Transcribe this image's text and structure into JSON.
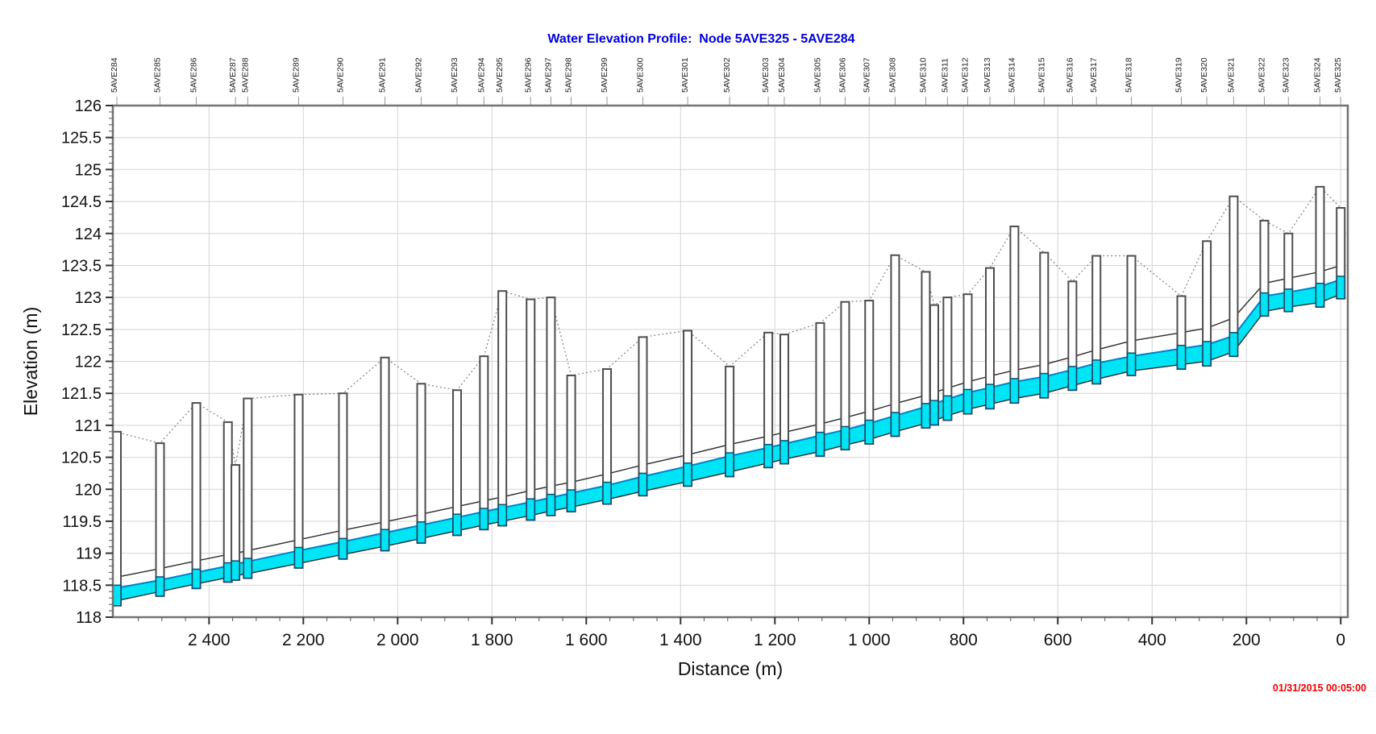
{
  "header": {
    "title": "Water Elevation Profile:  Node 5AVE325 - 5AVE284",
    "title_color": "#0000dd"
  },
  "footer": {
    "timestamp": "01/31/2015 00:05:00",
    "timestamp_color": "#ee0000"
  },
  "chart_data": {
    "type": "area",
    "title": "Water Elevation Profile:  Node 5AVE325 - 5AVE284",
    "xlabel": "Distance (m)",
    "ylabel": "Elevation (m)",
    "xlim": [
      2604,
      -15
    ],
    "ylim": [
      118,
      126
    ],
    "x_axis_reversed": true,
    "grid": true,
    "x_ticks": [
      {
        "v": 2400,
        "label": "2 400"
      },
      {
        "v": 2200,
        "label": "2 200"
      },
      {
        "v": 2000,
        "label": "2 000"
      },
      {
        "v": 1800,
        "label": "1 800"
      },
      {
        "v": 1600,
        "label": "1 600"
      },
      {
        "v": 1400,
        "label": "1 400"
      },
      {
        "v": 1200,
        "label": "1 200"
      },
      {
        "v": 1000,
        "label": "1 000"
      },
      {
        "v": 800,
        "label": "800"
      },
      {
        "v": 600,
        "label": "600"
      },
      {
        "v": 400,
        "label": "400"
      },
      {
        "v": 200,
        "label": "200"
      },
      {
        "v": 0,
        "label": "0"
      }
    ],
    "x_minor_step": 50,
    "y_ticks": [
      {
        "v": 126,
        "label": "126"
      },
      {
        "v": 125.5,
        "label": "125.5"
      },
      {
        "v": 125,
        "label": "125"
      },
      {
        "v": 124.5,
        "label": "124.5"
      },
      {
        "v": 124,
        "label": "124"
      },
      {
        "v": 123.5,
        "label": "123.5"
      },
      {
        "v": 123,
        "label": "123"
      },
      {
        "v": 122.5,
        "label": "122.5"
      },
      {
        "v": 122,
        "label": "122"
      },
      {
        "v": 121.5,
        "label": "121.5"
      },
      {
        "v": 121,
        "label": "121"
      },
      {
        "v": 120.5,
        "label": "120.5"
      },
      {
        "v": 120,
        "label": "120"
      },
      {
        "v": 119.5,
        "label": "119.5"
      },
      {
        "v": 119,
        "label": "119"
      },
      {
        "v": 118.5,
        "label": "118.5"
      },
      {
        "v": 118,
        "label": "118"
      }
    ],
    "y_minor_step": 0.1,
    "nodes": [
      {
        "label": "5AVE284",
        "d": 2600,
        "ground": 120.9
      },
      {
        "label": "5AVE285",
        "d": 2504,
        "ground": 120.72
      },
      {
        "label": "5AVE286",
        "d": 2427,
        "ground": 121.35
      },
      {
        "label": "",
        "d": 2360,
        "ground": 121.05
      },
      {
        "label": "5AVE287",
        "d": 2344,
        "ground": 120.38
      },
      {
        "label": "5AVE288",
        "d": 2318,
        "ground": 121.42
      },
      {
        "label": "5AVE289",
        "d": 2210,
        "ground": 121.48
      },
      {
        "label": "5AVE290",
        "d": 2116,
        "ground": 121.5
      },
      {
        "label": "5AVE291",
        "d": 2027,
        "ground": 122.06
      },
      {
        "label": "5AVE292",
        "d": 1950,
        "ground": 121.65
      },
      {
        "label": "5AVE293",
        "d": 1874,
        "ground": 121.55
      },
      {
        "label": "5AVE294",
        "d": 1817,
        "ground": 122.08
      },
      {
        "label": "5AVE295",
        "d": 1778,
        "ground": 123.1
      },
      {
        "label": "5AVE296",
        "d": 1718,
        "ground": 122.97
      },
      {
        "label": "5AVE297",
        "d": 1675,
        "ground": 123.0
      },
      {
        "label": "5AVE298",
        "d": 1632,
        "ground": 121.78
      },
      {
        "label": "5AVE299",
        "d": 1556,
        "ground": 121.88
      },
      {
        "label": "5AVE300",
        "d": 1480,
        "ground": 122.38
      },
      {
        "label": "5AVE301",
        "d": 1385,
        "ground": 122.48
      },
      {
        "label": "5AVE302",
        "d": 1296,
        "ground": 121.92
      },
      {
        "label": "5AVE303",
        "d": 1214,
        "ground": 122.45
      },
      {
        "label": "5AVE304",
        "d": 1180,
        "ground": 122.42
      },
      {
        "label": "5AVE305",
        "d": 1104,
        "ground": 122.6
      },
      {
        "label": "5AVE306",
        "d": 1051,
        "ground": 122.93
      },
      {
        "label": "5AVE307",
        "d": 1000,
        "ground": 122.95
      },
      {
        "label": "5AVE308",
        "d": 945,
        "ground": 123.66
      },
      {
        "label": "5AVE310",
        "d": 880,
        "ground": 123.4
      },
      {
        "label": "",
        "d": 862,
        "ground": 122.88
      },
      {
        "label": "5AVE311",
        "d": 834,
        "ground": 123.0
      },
      {
        "label": "5AVE312",
        "d": 791,
        "ground": 123.05
      },
      {
        "label": "5AVE313",
        "d": 744,
        "ground": 123.46
      },
      {
        "label": "5AVE314",
        "d": 692,
        "ground": 124.11
      },
      {
        "label": "5AVE315",
        "d": 629,
        "ground": 123.7
      },
      {
        "label": "5AVE316",
        "d": 569,
        "ground": 123.25
      },
      {
        "label": "5AVE317",
        "d": 518,
        "ground": 123.65
      },
      {
        "label": "5AVE318",
        "d": 444,
        "ground": 123.65
      },
      {
        "label": "5AVE319",
        "d": 338,
        "ground": 123.02
      },
      {
        "label": "5AVE320",
        "d": 284,
        "ground": 123.88
      },
      {
        "label": "5AVE321",
        "d": 227,
        "ground": 124.58
      },
      {
        "label": "5AVE322",
        "d": 162,
        "ground": 124.2
      },
      {
        "label": "5AVE323",
        "d": 111,
        "ground": 124.0
      },
      {
        "label": "5AVE324",
        "d": 44,
        "ground": 124.73
      },
      {
        "label": "5AVE325",
        "d": 0,
        "ground": 124.4
      }
    ],
    "profile": [
      {
        "d": 2600,
        "invert": 118.25,
        "water": 118.45,
        "crown": 118.62
      },
      {
        "d": 2504,
        "invert": 118.4,
        "water": 118.58,
        "crown": 118.76
      },
      {
        "d": 2427,
        "invert": 118.52,
        "water": 118.7,
        "crown": 118.88
      },
      {
        "d": 2360,
        "invert": 118.62,
        "water": 118.8,
        "crown": 118.98
      },
      {
        "d": 2344,
        "invert": 118.65,
        "water": 118.83,
        "crown": 119.0
      },
      {
        "d": 2318,
        "invert": 118.68,
        "water": 118.87,
        "crown": 119.04
      },
      {
        "d": 2210,
        "invert": 118.84,
        "water": 119.04,
        "crown": 119.21
      },
      {
        "d": 2116,
        "invert": 118.98,
        "water": 119.18,
        "crown": 119.36
      },
      {
        "d": 2027,
        "invert": 119.11,
        "water": 119.32,
        "crown": 119.49
      },
      {
        "d": 1950,
        "invert": 119.23,
        "water": 119.44,
        "crown": 119.61
      },
      {
        "d": 1874,
        "invert": 119.35,
        "water": 119.56,
        "crown": 119.73
      },
      {
        "d": 1817,
        "invert": 119.44,
        "water": 119.65,
        "crown": 119.82
      },
      {
        "d": 1778,
        "invert": 119.5,
        "water": 119.71,
        "crown": 119.88
      },
      {
        "d": 1718,
        "invert": 119.59,
        "water": 119.8,
        "crown": 119.98
      },
      {
        "d": 1675,
        "invert": 119.66,
        "water": 119.87,
        "crown": 120.05
      },
      {
        "d": 1632,
        "invert": 119.72,
        "water": 119.94,
        "crown": 120.11
      },
      {
        "d": 1556,
        "invert": 119.84,
        "water": 120.06,
        "crown": 120.24
      },
      {
        "d": 1480,
        "invert": 119.97,
        "water": 120.2,
        "crown": 120.38
      },
      {
        "d": 1385,
        "invert": 120.12,
        "water": 120.36,
        "crown": 120.54
      },
      {
        "d": 1296,
        "invert": 120.27,
        "water": 120.52,
        "crown": 120.7
      },
      {
        "d": 1214,
        "invert": 120.41,
        "water": 120.65,
        "crown": 120.83
      },
      {
        "d": 1180,
        "invert": 120.47,
        "water": 120.71,
        "crown": 120.89
      },
      {
        "d": 1104,
        "invert": 120.59,
        "water": 120.84,
        "crown": 121.02
      },
      {
        "d": 1051,
        "invert": 120.69,
        "water": 120.93,
        "crown": 121.12
      },
      {
        "d": 1000,
        "invert": 120.78,
        "water": 121.03,
        "crown": 121.22
      },
      {
        "d": 945,
        "invert": 120.9,
        "water": 121.15,
        "crown": 121.34
      },
      {
        "d": 880,
        "invert": 121.03,
        "water": 121.29,
        "crown": 121.47
      },
      {
        "d": 834,
        "invert": 121.15,
        "water": 121.41,
        "crown": 121.58
      },
      {
        "d": 791,
        "invert": 121.25,
        "water": 121.51,
        "crown": 121.68
      },
      {
        "d": 744,
        "invert": 121.33,
        "water": 121.59,
        "crown": 121.77
      },
      {
        "d": 692,
        "invert": 121.42,
        "water": 121.68,
        "crown": 121.86
      },
      {
        "d": 629,
        "invert": 121.5,
        "water": 121.76,
        "crown": 121.95
      },
      {
        "d": 569,
        "invert": 121.62,
        "water": 121.87,
        "crown": 122.07
      },
      {
        "d": 518,
        "invert": 121.72,
        "water": 121.97,
        "crown": 122.18
      },
      {
        "d": 444,
        "invert": 121.85,
        "water": 122.08,
        "crown": 122.32
      },
      {
        "d": 338,
        "invert": 121.95,
        "water": 122.2,
        "crown": 122.45
      },
      {
        "d": 284,
        "invert": 122.0,
        "water": 122.26,
        "crown": 122.52
      },
      {
        "d": 227,
        "invert": 122.15,
        "water": 122.4,
        "crown": 122.68
      },
      {
        "d": 162,
        "invert": 122.78,
        "water": 123.02,
        "crown": 123.22
      },
      {
        "d": 111,
        "invert": 122.85,
        "water": 123.08,
        "crown": 123.3
      },
      {
        "d": 44,
        "invert": 122.92,
        "water": 123.17,
        "crown": 123.4
      },
      {
        "d": 0,
        "invert": 123.05,
        "water": 123.28,
        "crown": 123.5
      }
    ],
    "colors": {
      "water_fill": "#00e5f5",
      "water_surface_line": "#0082c8",
      "pipe_line": "#2b2b2b",
      "ground_line": "#808080",
      "node_fill": "#ffffff",
      "node_stroke": "#4d4d4d",
      "node_water_stroke": "#134a6e",
      "grid": "#d4d4d4",
      "frame": "#737373",
      "tick_text": "#111111"
    }
  }
}
